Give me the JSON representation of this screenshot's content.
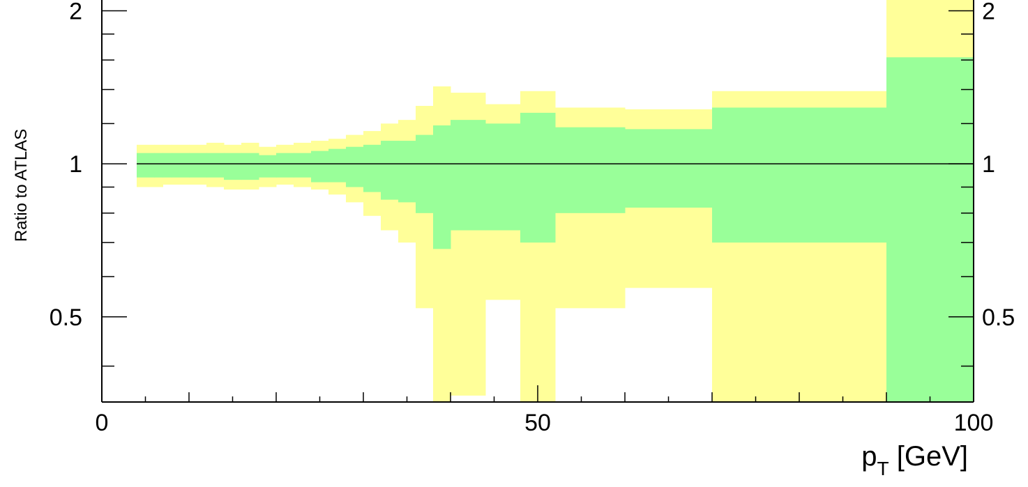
{
  "chart_data": {
    "type": "area",
    "title": "",
    "xlabel": "p_T [GeV]",
    "xlabel_main": "p",
    "xlabel_sub": "T",
    "xlabel_unit": " [GeV]",
    "ylabel": "Ratio to ATLAS",
    "xlim": [
      0,
      100
    ],
    "ylim": [
      0.34,
      2.1
    ],
    "yscale": "log",
    "reference_line": 1,
    "x_ticks": [
      0,
      50,
      100
    ],
    "x_tick_labels": [
      "0",
      "50",
      "100"
    ],
    "y_ticks": [
      0.5,
      1,
      2
    ],
    "y_tick_labels": [
      "0.5",
      "1",
      "2"
    ],
    "grid": false,
    "legend": "none",
    "colors": {
      "outer_band": "#ffff99",
      "inner_band": "#99ff99",
      "line": "#000000"
    },
    "series": [
      {
        "name": "",
        "bin_edges": [
          4,
          6,
          7,
          8,
          10,
          12,
          14,
          16,
          18,
          20,
          22,
          24,
          26,
          28,
          30,
          32,
          34,
          36,
          38,
          40,
          44,
          48,
          52,
          60,
          70,
          90,
          100
        ],
        "inner_upper": [
          1.05,
          1.05,
          1.05,
          1.05,
          1.05,
          1.05,
          1.05,
          1.05,
          1.04,
          1.05,
          1.05,
          1.06,
          1.07,
          1.08,
          1.09,
          1.11,
          1.11,
          1.14,
          1.19,
          1.22,
          1.2,
          1.26,
          1.18,
          1.17,
          1.29,
          1.62
        ],
        "inner_lower": [
          0.94,
          0.94,
          0.94,
          0.94,
          0.94,
          0.94,
          0.93,
          0.93,
          0.94,
          0.94,
          0.94,
          0.92,
          0.92,
          0.9,
          0.88,
          0.85,
          0.84,
          0.8,
          0.68,
          0.74,
          0.74,
          0.7,
          0.8,
          0.82,
          0.7,
          0.3
        ],
        "outer_upper": [
          1.09,
          1.09,
          1.09,
          1.09,
          1.09,
          1.1,
          1.09,
          1.1,
          1.08,
          1.09,
          1.1,
          1.11,
          1.12,
          1.14,
          1.16,
          1.2,
          1.22,
          1.3,
          1.42,
          1.38,
          1.31,
          1.39,
          1.29,
          1.28,
          1.39,
          2.1
        ],
        "outer_lower": [
          0.9,
          0.9,
          0.91,
          0.91,
          0.91,
          0.9,
          0.89,
          0.89,
          0.9,
          0.91,
          0.9,
          0.89,
          0.87,
          0.84,
          0.79,
          0.74,
          0.7,
          0.52,
          0.3,
          0.35,
          0.54,
          0.3,
          0.52,
          0.57,
          0.3,
          0.3
        ]
      }
    ]
  }
}
